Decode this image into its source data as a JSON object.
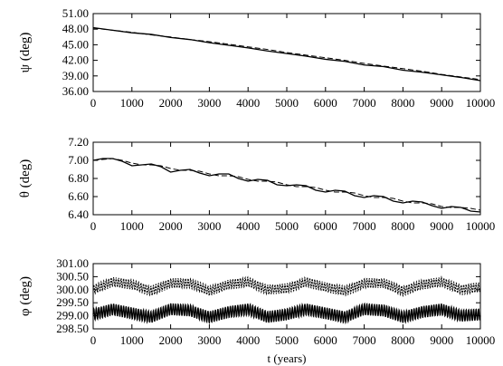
{
  "chart_data": [
    {
      "type": "line",
      "xlabel": "",
      "ylabel": "ψ (deg)",
      "xlim": [
        0,
        10000
      ],
      "ylim": [
        36.0,
        51.0
      ],
      "xticks": [
        "0",
        "1000",
        "2000",
        "3000",
        "4000",
        "5000",
        "6000",
        "7000",
        "8000",
        "9000",
        "10000"
      ],
      "yticks": [
        "36.00",
        "39.00",
        "42.00",
        "45.00",
        "48.00",
        "51.00"
      ],
      "series": [
        {
          "style": "solid",
          "x": [
            0,
            500,
            1000,
            1500,
            2000,
            2500,
            3000,
            3500,
            4000,
            4500,
            5000,
            5500,
            6000,
            6500,
            7000,
            7500,
            8000,
            8500,
            9000,
            9500,
            10000
          ],
          "y": [
            48.3,
            47.8,
            47.3,
            47.0,
            46.4,
            46.0,
            45.4,
            44.9,
            44.4,
            43.8,
            43.3,
            42.8,
            42.2,
            41.8,
            41.1,
            40.8,
            40.1,
            39.7,
            39.2,
            38.7,
            38.1
          ]
        },
        {
          "style": "dashed",
          "x": [
            0,
            500,
            1000,
            1500,
            2000,
            2500,
            3000,
            3500,
            4000,
            4500,
            5000,
            5500,
            6000,
            6500,
            7000,
            7500,
            8000,
            8500,
            9000,
            9500,
            10000
          ],
          "y": [
            48.2,
            47.8,
            47.4,
            46.9,
            46.5,
            46.0,
            45.6,
            45.1,
            44.6,
            44.1,
            43.5,
            43.0,
            42.5,
            42.0,
            41.4,
            40.9,
            40.4,
            39.9,
            39.3,
            38.8,
            38.3
          ]
        }
      ]
    },
    {
      "type": "line",
      "xlabel": "",
      "ylabel": "θ (deg)",
      "xlim": [
        0,
        10000
      ],
      "ylim": [
        6.4,
        7.2
      ],
      "xticks": [
        "0",
        "1000",
        "2000",
        "3000",
        "4000",
        "5000",
        "6000",
        "7000",
        "8000",
        "9000",
        "10000"
      ],
      "yticks": [
        "6.40",
        "6.60",
        "6.80",
        "7.00",
        "7.20"
      ],
      "series": [
        {
          "style": "solid",
          "x": [
            0,
            250,
            500,
            750,
            1000,
            1250,
            1500,
            1750,
            2000,
            2250,
            2500,
            2750,
            3000,
            3250,
            3500,
            3750,
            4000,
            4250,
            4500,
            4750,
            5000,
            5250,
            5500,
            5750,
            6000,
            6250,
            6500,
            6750,
            7000,
            7250,
            7500,
            7750,
            8000,
            8250,
            8500,
            8750,
            9000,
            9250,
            9500,
            9750,
            10000
          ],
          "y": [
            7.0,
            7.02,
            7.02,
            6.99,
            6.94,
            6.95,
            6.96,
            6.93,
            6.87,
            6.89,
            6.9,
            6.86,
            6.83,
            6.85,
            6.85,
            6.8,
            6.77,
            6.79,
            6.78,
            6.73,
            6.72,
            6.73,
            6.72,
            6.67,
            6.65,
            6.67,
            6.66,
            6.61,
            6.59,
            6.61,
            6.6,
            6.55,
            6.53,
            6.55,
            6.54,
            6.5,
            6.47,
            6.49,
            6.48,
            6.44,
            6.43
          ]
        },
        {
          "style": "dashed",
          "x": [
            0,
            250,
            500,
            750,
            1000,
            1250,
            1500,
            1750,
            2000,
            2250,
            2500,
            2750,
            3000,
            3250,
            3500,
            3750,
            4000,
            4250,
            4500,
            4750,
            5000,
            5250,
            5500,
            5750,
            6000,
            6250,
            6500,
            6750,
            7000,
            7250,
            7500,
            7750,
            8000,
            8250,
            8500,
            8750,
            9000,
            9250,
            9500,
            9750,
            10000
          ],
          "y": [
            7.0,
            7.01,
            7.02,
            7.0,
            6.97,
            6.95,
            6.95,
            6.94,
            6.91,
            6.89,
            6.89,
            6.88,
            6.85,
            6.83,
            6.83,
            6.82,
            6.79,
            6.77,
            6.77,
            6.76,
            6.73,
            6.71,
            6.71,
            6.7,
            6.67,
            6.65,
            6.65,
            6.64,
            6.61,
            6.59,
            6.59,
            6.58,
            6.55,
            6.53,
            6.53,
            6.52,
            6.49,
            6.48,
            6.48,
            6.47,
            6.45
          ]
        }
      ]
    },
    {
      "type": "line",
      "xlabel": "t (years)",
      "ylabel": "φ (deg)",
      "xlim": [
        0,
        10000
      ],
      "ylim": [
        298.5,
        301.0
      ],
      "xticks": [
        "0",
        "1000",
        "2000",
        "3000",
        "4000",
        "5000",
        "6000",
        "7000",
        "8000",
        "9000",
        "10000"
      ],
      "yticks": [
        "298.50",
        "299.00",
        "299.50",
        "300.00",
        "300.50",
        "301.00"
      ],
      "series": [
        {
          "style": "dashed",
          "x": [
            0,
            500,
            1000,
            1500,
            2000,
            2500,
            3000,
            3500,
            4000,
            4500,
            5000,
            5500,
            6000,
            6500,
            7000,
            7500,
            8000,
            8500,
            9000,
            9500,
            10000
          ],
          "y": [
            300.0,
            300.3,
            300.2,
            299.95,
            300.25,
            300.25,
            299.95,
            300.2,
            300.3,
            300.0,
            300.05,
            300.3,
            300.1,
            299.95,
            300.25,
            300.25,
            299.95,
            300.2,
            300.3,
            300.0,
            300.1
          ],
          "oscillation_amplitude": 0.18
        },
        {
          "style": "solid",
          "x": [
            0,
            500,
            1000,
            1500,
            2000,
            2500,
            3000,
            3500,
            4000,
            4500,
            5000,
            5500,
            6000,
            6500,
            7000,
            7500,
            8000,
            8500,
            9000,
            9500,
            10000
          ],
          "y": [
            299.05,
            299.25,
            299.1,
            298.95,
            299.25,
            299.2,
            298.95,
            299.15,
            299.25,
            298.95,
            299.05,
            299.25,
            299.1,
            298.95,
            299.25,
            299.2,
            298.95,
            299.15,
            299.25,
            299.0,
            299.05
          ],
          "oscillation_amplitude": 0.22
        }
      ]
    }
  ]
}
